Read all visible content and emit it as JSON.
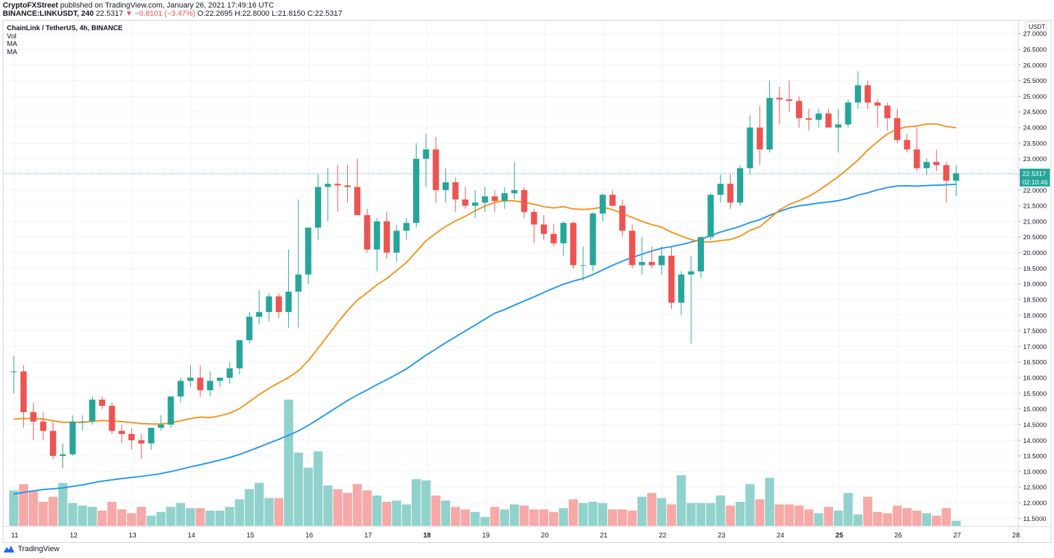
{
  "header": {
    "publisher": "CryptoFXStreet",
    "published_text": "published on TradingView.com, January 26, 2021 17:49:16 UTC"
  },
  "symbol_line": {
    "symbol": "BINANCE:LINKUSDT, 240",
    "price": "22.5317",
    "change": "▼ −0.8101 (−3.47%)",
    "ohlc": "O:22.2695 H:22.8000 L:21.8150 C:22.5317"
  },
  "legend": {
    "title": "ChainLink / TetherUS, 4h, BINANCE",
    "vol": "Vol",
    "ma1": "MA",
    "ma2": "MA"
  },
  "footer": {
    "brand": "TradingView"
  },
  "colors": {
    "up": "#26a69a",
    "down": "#ef5350",
    "vol_up": "#92d2cc",
    "vol_down": "#f7a9a7",
    "ma_fast": "#f7931a",
    "ma_slow": "#2196f3",
    "grid": "#f0f3fa",
    "last_price_line": "#26a69a"
  },
  "chart_data": {
    "type": "candlestick",
    "title": "ChainLink / TetherUS, 4h, BINANCE",
    "price_axis_unit": "USDT",
    "ylim": [
      11.25,
      27.15
    ],
    "price_ticks": [
      "27.0000",
      "26.5000",
      "26.0000",
      "25.5000",
      "25.0000",
      "24.5000",
      "24.0000",
      "23.5000",
      "23.0000",
      "22.5000",
      "22.0000",
      "21.5000",
      "21.0000",
      "20.5000",
      "20.0000",
      "19.5000",
      "19.0000",
      "18.5000",
      "18.0000",
      "17.5000",
      "17.0000",
      "16.5000",
      "16.0000",
      "15.5000",
      "15.0000",
      "14.5000",
      "14.0000",
      "13.5000",
      "13.0000",
      "12.5000",
      "12.0000",
      "11.5000"
    ],
    "date_ticks": [
      "11",
      "12",
      "13",
      "14",
      "15",
      "16",
      "17",
      "18",
      "19",
      "20",
      "21",
      "22",
      "23",
      "24",
      "25",
      "26",
      "27",
      "28"
    ],
    "x_start_date": "2021-01-11",
    "last_price": {
      "label": "22.5317",
      "value": 22.5317
    },
    "countdown": "02:10:46",
    "candles": [
      {
        "o": 16.2,
        "h": 16.7,
        "l": 15.5,
        "c": 16.2
      },
      {
        "o": 16.2,
        "h": 16.4,
        "l": 14.4,
        "c": 14.9
      },
      {
        "o": 14.9,
        "h": 15.2,
        "l": 14.0,
        "c": 14.6
      },
      {
        "o": 14.6,
        "h": 14.9,
        "l": 14.0,
        "c": 14.3
      },
      {
        "o": 14.3,
        "h": 14.6,
        "l": 13.4,
        "c": 13.5
      },
      {
        "o": 13.5,
        "h": 13.9,
        "l": 13.1,
        "c": 13.55
      },
      {
        "o": 13.55,
        "h": 14.8,
        "l": 13.5,
        "c": 14.6
      },
      {
        "o": 14.6,
        "h": 14.8,
        "l": 14.3,
        "c": 14.6
      },
      {
        "o": 14.6,
        "h": 15.4,
        "l": 14.5,
        "c": 15.3
      },
      {
        "o": 15.3,
        "h": 15.4,
        "l": 15.0,
        "c": 15.1
      },
      {
        "o": 15.1,
        "h": 15.2,
        "l": 14.2,
        "c": 14.3
      },
      {
        "o": 14.3,
        "h": 14.5,
        "l": 13.9,
        "c": 14.2
      },
      {
        "o": 14.2,
        "h": 14.4,
        "l": 13.7,
        "c": 14.0
      },
      {
        "o": 14.0,
        "h": 14.2,
        "l": 13.4,
        "c": 13.9
      },
      {
        "o": 13.9,
        "h": 14.4,
        "l": 13.7,
        "c": 14.4
      },
      {
        "o": 14.4,
        "h": 14.8,
        "l": 14.3,
        "c": 14.5
      },
      {
        "o": 14.5,
        "h": 15.4,
        "l": 14.4,
        "c": 15.4
      },
      {
        "o": 15.4,
        "h": 16.0,
        "l": 15.2,
        "c": 15.9
      },
      {
        "o": 15.9,
        "h": 16.4,
        "l": 15.7,
        "c": 16.0
      },
      {
        "o": 16.0,
        "h": 16.4,
        "l": 15.4,
        "c": 15.6
      },
      {
        "o": 15.6,
        "h": 16.2,
        "l": 15.4,
        "c": 15.9
      },
      {
        "o": 15.9,
        "h": 16.0,
        "l": 15.7,
        "c": 16.0
      },
      {
        "o": 16.0,
        "h": 16.5,
        "l": 15.8,
        "c": 16.3
      },
      {
        "o": 16.3,
        "h": 17.2,
        "l": 16.1,
        "c": 17.2
      },
      {
        "o": 17.2,
        "h": 18.1,
        "l": 17.1,
        "c": 17.95
      },
      {
        "o": 17.95,
        "h": 18.8,
        "l": 17.7,
        "c": 18.1
      },
      {
        "o": 18.1,
        "h": 18.7,
        "l": 17.8,
        "c": 18.6
      },
      {
        "o": 18.6,
        "h": 18.7,
        "l": 17.9,
        "c": 18.1
      },
      {
        "o": 18.1,
        "h": 20.1,
        "l": 17.6,
        "c": 18.75
      },
      {
        "o": 18.75,
        "h": 21.7,
        "l": 17.6,
        "c": 19.3
      },
      {
        "o": 19.3,
        "h": 20.8,
        "l": 19.0,
        "c": 20.8
      },
      {
        "o": 20.8,
        "h": 22.5,
        "l": 20.4,
        "c": 22.1
      },
      {
        "o": 22.1,
        "h": 22.7,
        "l": 21.0,
        "c": 22.2
      },
      {
        "o": 22.2,
        "h": 22.8,
        "l": 21.3,
        "c": 22.15
      },
      {
        "o": 22.15,
        "h": 22.8,
        "l": 21.6,
        "c": 22.1
      },
      {
        "o": 22.1,
        "h": 23.0,
        "l": 21.2,
        "c": 21.2
      },
      {
        "o": 21.2,
        "h": 21.4,
        "l": 20.0,
        "c": 20.1
      },
      {
        "o": 20.1,
        "h": 21.1,
        "l": 19.4,
        "c": 21.0
      },
      {
        "o": 21.0,
        "h": 21.3,
        "l": 19.8,
        "c": 20.0
      },
      {
        "o": 20.0,
        "h": 20.9,
        "l": 19.7,
        "c": 20.7
      },
      {
        "o": 20.7,
        "h": 21.1,
        "l": 20.4,
        "c": 20.95
      },
      {
        "o": 20.95,
        "h": 23.5,
        "l": 20.8,
        "c": 23.0
      },
      {
        "o": 23.0,
        "h": 23.8,
        "l": 22.1,
        "c": 23.3
      },
      {
        "o": 23.3,
        "h": 23.7,
        "l": 21.6,
        "c": 22.0
      },
      {
        "o": 22.0,
        "h": 22.7,
        "l": 21.6,
        "c": 22.25
      },
      {
        "o": 22.25,
        "h": 22.4,
        "l": 21.3,
        "c": 21.7
      },
      {
        "o": 21.7,
        "h": 22.1,
        "l": 21.4,
        "c": 21.5
      },
      {
        "o": 21.5,
        "h": 22.0,
        "l": 21.1,
        "c": 21.6
      },
      {
        "o": 21.6,
        "h": 22.1,
        "l": 21.3,
        "c": 21.8
      },
      {
        "o": 21.8,
        "h": 22.0,
        "l": 21.3,
        "c": 21.65
      },
      {
        "o": 21.65,
        "h": 22.1,
        "l": 21.4,
        "c": 21.9
      },
      {
        "o": 21.9,
        "h": 22.9,
        "l": 21.7,
        "c": 22.0
      },
      {
        "o": 22.0,
        "h": 22.1,
        "l": 21.1,
        "c": 21.3
      },
      {
        "o": 21.3,
        "h": 21.4,
        "l": 20.3,
        "c": 20.9
      },
      {
        "o": 20.9,
        "h": 21.2,
        "l": 20.4,
        "c": 20.6
      },
      {
        "o": 20.6,
        "h": 20.9,
        "l": 20.2,
        "c": 20.3
      },
      {
        "o": 20.3,
        "h": 21.0,
        "l": 19.9,
        "c": 20.95
      },
      {
        "o": 20.95,
        "h": 21.0,
        "l": 19.5,
        "c": 19.6
      },
      {
        "o": 19.6,
        "h": 20.2,
        "l": 19.1,
        "c": 19.6
      },
      {
        "o": 19.6,
        "h": 21.3,
        "l": 19.4,
        "c": 21.25
      },
      {
        "o": 21.25,
        "h": 21.9,
        "l": 21.0,
        "c": 21.85
      },
      {
        "o": 21.85,
        "h": 22.0,
        "l": 21.5,
        "c": 21.5
      },
      {
        "o": 21.5,
        "h": 21.7,
        "l": 20.5,
        "c": 20.7
      },
      {
        "o": 20.7,
        "h": 20.9,
        "l": 19.5,
        "c": 19.6
      },
      {
        "o": 19.6,
        "h": 20.5,
        "l": 19.3,
        "c": 19.7
      },
      {
        "o": 19.7,
        "h": 20.2,
        "l": 19.5,
        "c": 19.6
      },
      {
        "o": 19.6,
        "h": 20.2,
        "l": 19.3,
        "c": 19.9
      },
      {
        "o": 19.9,
        "h": 20.2,
        "l": 18.2,
        "c": 18.4
      },
      {
        "o": 18.4,
        "h": 19.4,
        "l": 18.0,
        "c": 19.3
      },
      {
        "o": 19.3,
        "h": 19.9,
        "l": 17.1,
        "c": 19.4
      },
      {
        "o": 19.4,
        "h": 20.5,
        "l": 19.2,
        "c": 20.5
      },
      {
        "o": 20.5,
        "h": 21.9,
        "l": 20.4,
        "c": 21.85
      },
      {
        "o": 21.85,
        "h": 22.5,
        "l": 21.6,
        "c": 22.2
      },
      {
        "o": 22.2,
        "h": 22.5,
        "l": 21.4,
        "c": 21.6
      },
      {
        "o": 21.6,
        "h": 22.8,
        "l": 21.5,
        "c": 22.7
      },
      {
        "o": 22.7,
        "h": 24.4,
        "l": 22.5,
        "c": 24.0
      },
      {
        "o": 24.0,
        "h": 24.7,
        "l": 22.8,
        "c": 23.3
      },
      {
        "o": 23.3,
        "h": 25.5,
        "l": 23.2,
        "c": 24.95
      },
      {
        "o": 24.95,
        "h": 25.3,
        "l": 24.1,
        "c": 24.9
      },
      {
        "o": 24.9,
        "h": 25.5,
        "l": 24.5,
        "c": 24.85
      },
      {
        "o": 24.85,
        "h": 25.0,
        "l": 24.0,
        "c": 24.3
      },
      {
        "o": 24.3,
        "h": 24.6,
        "l": 23.9,
        "c": 24.25
      },
      {
        "o": 24.25,
        "h": 24.6,
        "l": 24.0,
        "c": 24.45
      },
      {
        "o": 24.45,
        "h": 24.6,
        "l": 24.0,
        "c": 24.0
      },
      {
        "o": 24.0,
        "h": 24.6,
        "l": 23.2,
        "c": 24.1
      },
      {
        "o": 24.1,
        "h": 24.9,
        "l": 24.0,
        "c": 24.8
      },
      {
        "o": 24.8,
        "h": 25.8,
        "l": 24.6,
        "c": 25.35
      },
      {
        "o": 25.35,
        "h": 25.5,
        "l": 24.6,
        "c": 24.8
      },
      {
        "o": 24.8,
        "h": 24.9,
        "l": 24.0,
        "c": 24.7
      },
      {
        "o": 24.7,
        "h": 24.8,
        "l": 23.9,
        "c": 24.3
      },
      {
        "o": 24.3,
        "h": 24.6,
        "l": 23.5,
        "c": 23.6
      },
      {
        "o": 23.6,
        "h": 23.8,
        "l": 23.2,
        "c": 23.3
      },
      {
        "o": 23.3,
        "h": 24.0,
        "l": 22.6,
        "c": 22.7
      },
      {
        "o": 22.7,
        "h": 23.0,
        "l": 22.5,
        "c": 22.9
      },
      {
        "o": 22.9,
        "h": 23.3,
        "l": 22.6,
        "c": 22.8
      },
      {
        "o": 22.8,
        "h": 22.9,
        "l": 21.6,
        "c": 22.3
      },
      {
        "o": 22.3,
        "h": 22.8,
        "l": 21.8,
        "c": 22.5317
      }
    ],
    "volume_relative": [
      0.28,
      0.33,
      0.28,
      0.19,
      0.23,
      0.34,
      0.18,
      0.16,
      0.15,
      0.12,
      0.19,
      0.13,
      0.1,
      0.15,
      0.08,
      0.11,
      0.15,
      0.18,
      0.14,
      0.14,
      0.12,
      0.12,
      0.15,
      0.21,
      0.29,
      0.34,
      0.22,
      0.22,
      1.0,
      0.58,
      0.46,
      0.59,
      0.32,
      0.29,
      0.26,
      0.33,
      0.28,
      0.24,
      0.19,
      0.2,
      0.17,
      0.37,
      0.36,
      0.24,
      0.2,
      0.15,
      0.13,
      0.11,
      0.07,
      0.15,
      0.13,
      0.17,
      0.16,
      0.13,
      0.13,
      0.11,
      0.14,
      0.21,
      0.18,
      0.19,
      0.18,
      0.13,
      0.13,
      0.12,
      0.23,
      0.26,
      0.22,
      0.17,
      0.4,
      0.18,
      0.18,
      0.18,
      0.24,
      0.16,
      0.19,
      0.33,
      0.21,
      0.38,
      0.17,
      0.17,
      0.16,
      0.13,
      0.1,
      0.15,
      0.12,
      0.26,
      0.09,
      0.23,
      0.11,
      0.1,
      0.16,
      0.14,
      0.12,
      0.1,
      0.08,
      0.14,
      0.04
    ]
  }
}
